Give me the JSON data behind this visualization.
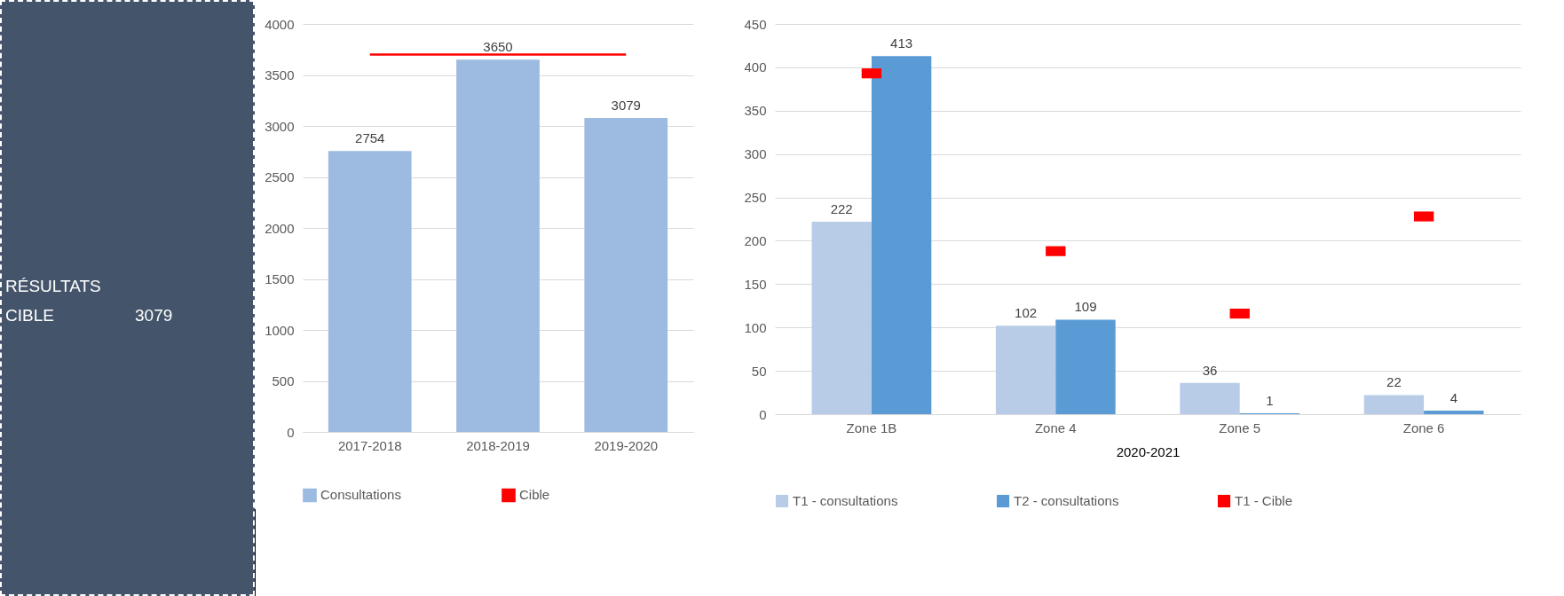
{
  "chart_data": [
    {
      "type": "other",
      "annotations": [
        "RÉSULTATS",
        "CIBLE",
        "3079"
      ]
    },
    {
      "type": "bar",
      "categories": [
        "2017-2018",
        "2018-2019",
        "2019-2020"
      ],
      "series": [
        {
          "name": "Consultations",
          "color": "#9dbbe0",
          "values": [
            2754,
            3650,
            3079
          ],
          "value_labels": [
            "2754",
            "3650",
            "3079"
          ]
        },
        {
          "name": "Cible",
          "type": "line",
          "color": "#ff0000",
          "values": [
            3700,
            3700,
            3700
          ]
        }
      ],
      "ylim": [
        0,
        4000
      ],
      "yticks": [
        0,
        500,
        1000,
        1500,
        2000,
        2500,
        3000,
        3500,
        4000
      ],
      "grid": "y",
      "legend": "bottom"
    },
    {
      "type": "bar",
      "categories": [
        "Zone 1B",
        "Zone 4",
        "Zone 5",
        "Zone 6"
      ],
      "xlabel": "2020-2021",
      "series": [
        {
          "name": "T1 - consultations",
          "color": "#b8cce8",
          "values": [
            222,
            102,
            36,
            22
          ],
          "value_labels": [
            "222",
            "102",
            "36",
            "22"
          ]
        },
        {
          "name": "T2 - consultations",
          "color": "#5b9bd5",
          "values": [
            413,
            109,
            1,
            4
          ],
          "value_labels": [
            "413",
            "109",
            "1",
            "4"
          ]
        },
        {
          "name": "T1 -  Cible",
          "type": "scatter",
          "color": "#ff0000",
          "values": [
            393,
            188,
            116,
            228
          ]
        }
      ],
      "ylim": [
        0,
        450
      ],
      "yticks": [
        0,
        50,
        100,
        150,
        200,
        250,
        300,
        350,
        400,
        450
      ],
      "grid": "y",
      "legend": "bottom"
    }
  ]
}
